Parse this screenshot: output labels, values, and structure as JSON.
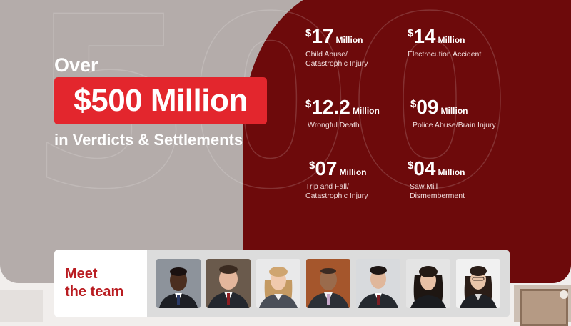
{
  "headline": {
    "over": "Over",
    "amount": "$500 Million",
    "subtitle": "in Verdicts & Settlements"
  },
  "watermark": "500",
  "stats": [
    {
      "dollar": "$",
      "value": "17",
      "unit": "Million",
      "line1": "Child Abuse/",
      "line2": "Catastrophic Injury"
    },
    {
      "dollar": "$",
      "value": "14",
      "unit": "Million",
      "line1": "Electrocution Accident",
      "line2": ""
    },
    {
      "dollar": "$",
      "value": "12.2",
      "unit": "Million",
      "line1": "Wrongful Death",
      "line2": ""
    },
    {
      "dollar": "$",
      "value": "09",
      "unit": "Million",
      "line1": "Police Abuse/Brain Injury",
      "line2": ""
    },
    {
      "dollar": "$",
      "value": "07",
      "unit": "Million",
      "line1": "Trip and Fall/",
      "line2": "Catastrophic Injury"
    },
    {
      "dollar": "$",
      "value": "04",
      "unit": "Million",
      "line1": "Saw Mill",
      "line2": "Dismemberment"
    }
  ],
  "team": {
    "label_line1": "Meet",
    "label_line2": "the team"
  },
  "colors": {
    "dark_red": "#6d0a0b",
    "accent_red": "#e3262d",
    "taupe": "#b4acaa",
    "team_label_red": "#b91c21"
  }
}
